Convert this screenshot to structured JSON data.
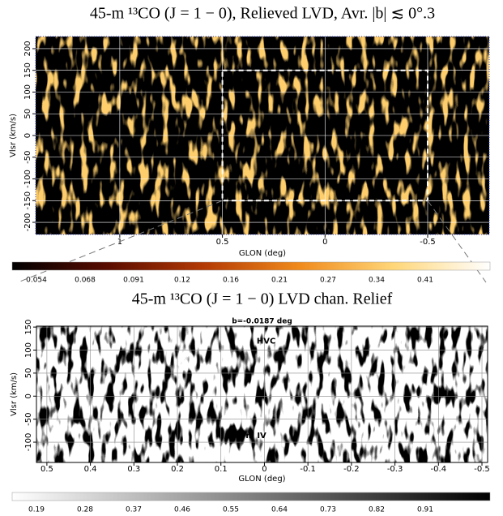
{
  "chart_data": [
    {
      "type": "heatmap",
      "title": "45-m ¹³CO (J = 1 − 0), Relieved LVD, Avr. |b| ≲ 0°.3",
      "x_label": "GLON (deg)",
      "y_label": "Vlsr (km/s)",
      "xlim": [
        1.41,
        -0.8
      ],
      "ylim": [
        -228,
        228
      ],
      "xticks": [
        1,
        0.5,
        0,
        -0.5
      ],
      "yticks": [
        -200,
        -150,
        -100,
        -50,
        0,
        50,
        100,
        150,
        200
      ],
      "grid": true,
      "grid_color": "#ffffff",
      "frame_color": "#3344cc",
      "box": {
        "x": [
          0.5,
          -0.5
        ],
        "y": [
          -150,
          150
        ]
      },
      "colormap": [
        "#000000",
        "#5a0c00",
        "#b33a05",
        "#f08a1c",
        "#ffd77a",
        "#ffffff"
      ],
      "colorbar_ticks": [
        0.054,
        0.068,
        0.091,
        0.12,
        0.16,
        0.21,
        0.27,
        0.34,
        0.41
      ]
    },
    {
      "type": "heatmap",
      "title": "45-m ¹³CO (J = 1 − 0) LVD chan. Relief",
      "subtitle": "b=-0.0187 deg",
      "x_label": "GLON (deg)",
      "y_label": "Vlsr (km/s)",
      "xlim": [
        0.524,
        -0.513
      ],
      "ylim": [
        -144,
        152
      ],
      "xticks": [
        0.5,
        0.4,
        0.3,
        0.2,
        0.1,
        0,
        -0.1,
        -0.2,
        -0.3,
        -0.4,
        -0.5
      ],
      "yticks": [
        -100,
        -50,
        0,
        50,
        100,
        150
      ],
      "grid": true,
      "grid_color": "#888888",
      "frame_color": "#000000",
      "annotations": [
        {
          "text": "HVC",
          "x": -0.004,
          "y": 119
        },
        {
          "text": "Arm IV",
          "x": 0.031,
          "y": -86
        }
      ],
      "colormap": [
        "#ffffff",
        "#000000"
      ],
      "colorbar_ticks": [
        0.19,
        0.28,
        0.37,
        0.46,
        0.55,
        0.64,
        0.73,
        0.82,
        0.91
      ]
    }
  ]
}
